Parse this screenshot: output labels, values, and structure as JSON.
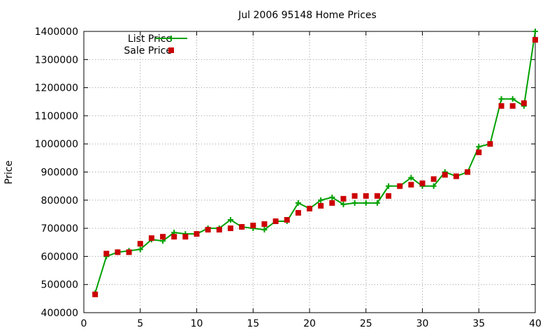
{
  "chart_data": {
    "type": "line",
    "title": "Jul 2006 95148 Home Prices",
    "xlabel": "",
    "ylabel": "Price",
    "xlim": [
      0,
      40
    ],
    "ylim": [
      400000,
      1400000
    ],
    "xticks": [
      0,
      5,
      10,
      15,
      20,
      25,
      30,
      35,
      40
    ],
    "yticks": [
      400000,
      500000,
      600000,
      700000,
      800000,
      900000,
      1000000,
      1100000,
      1200000,
      1300000,
      1400000
    ],
    "grid": true,
    "legend_position": "top-left",
    "x": [
      1,
      2,
      3,
      4,
      5,
      6,
      7,
      8,
      9,
      10,
      11,
      12,
      13,
      14,
      15,
      16,
      17,
      18,
      19,
      20,
      21,
      22,
      23,
      24,
      25,
      26,
      27,
      28,
      29,
      30,
      31,
      32,
      33,
      34,
      35,
      36,
      37,
      38,
      39,
      40
    ],
    "series": [
      {
        "name": "List Price",
        "style": "lines+points",
        "marker": "plus",
        "color": "#00a000",
        "values": [
          470000,
          600000,
          615000,
          620000,
          625000,
          660000,
          655000,
          685000,
          680000,
          680000,
          700000,
          700000,
          730000,
          705000,
          700000,
          695000,
          725000,
          725000,
          790000,
          770000,
          800000,
          810000,
          785000,
          790000,
          790000,
          790000,
          850000,
          850000,
          880000,
          850000,
          850000,
          900000,
          885000,
          900000,
          990000,
          1000000,
          1160000,
          1160000,
          1135000,
          1400000
        ]
      },
      {
        "name": "Sale Price",
        "style": "points",
        "marker": "square",
        "color": "#cc0000",
        "values": [
          465000,
          610000,
          615000,
          615000,
          645000,
          665000,
          670000,
          670000,
          670000,
          680000,
          695000,
          695000,
          700000,
          705000,
          710000,
          715000,
          725000,
          730000,
          755000,
          770000,
          780000,
          790000,
          805000,
          815000,
          815000,
          815000,
          815000,
          850000,
          855000,
          860000,
          875000,
          890000,
          885000,
          900000,
          970000,
          1000000,
          1135000,
          1135000,
          1145000,
          1370000
        ]
      }
    ]
  }
}
